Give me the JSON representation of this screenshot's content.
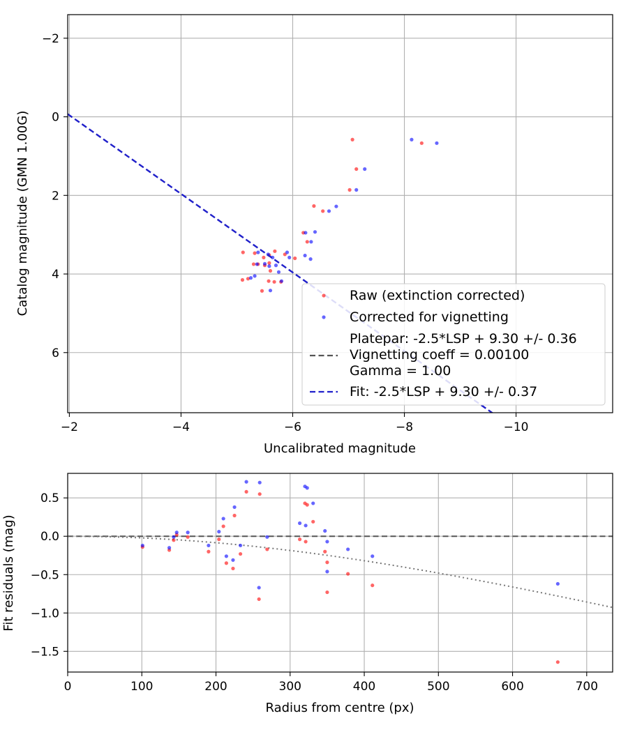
{
  "chart_data": [
    {
      "type": "scatter",
      "xlabel": "Uncalibrated magnitude",
      "ylabel": "Catalog magnitude (GMN 1.00G)",
      "xlim": [
        -1.97,
        -11.73
      ],
      "ylim": [
        7.53,
        -2.6
      ],
      "x_ticks": [
        -2,
        -4,
        -6,
        -8,
        -10
      ],
      "x_tick_labels": [
        "−2",
        "−4",
        "−6",
        "−8",
        "−10"
      ],
      "y_ticks": [
        -2,
        0,
        2,
        4,
        6
      ],
      "y_tick_labels": [
        "−2",
        "0",
        "2",
        "4",
        "6"
      ],
      "grid": true,
      "legend_position": "lower-right",
      "legend": [
        "Raw (extinction corrected)",
        "Corrected for vignetting",
        "Platepar: -2.5*LSP + 9.30 +/- 0.36",
        "Vignetting coeff = 0.00100",
        "Gamma = 1.00",
        "Fit: -2.5*LSP + 9.30 +/- 0.37"
      ],
      "colors": {
        "raw": "#ff0000",
        "corrected": "#0000ff",
        "fit": "#2020cc",
        "platepar": "#555555",
        "grid": "#b0b0b0"
      },
      "fit_line": {
        "slope": -1.0,
        "intercept": -2.04
      },
      "series": [
        {
          "name": "Raw (extinction corrected)",
          "points": [
            [
              -7.07,
              0.58
            ],
            [
              -8.31,
              0.67
            ],
            [
              -7.14,
              1.33
            ],
            [
              -7.02,
              1.86
            ],
            [
              -6.38,
              2.27
            ],
            [
              -6.54,
              2.4
            ],
            [
              -6.19,
              2.95
            ],
            [
              -6.26,
              3.18
            ],
            [
              -5.11,
              3.45
            ],
            [
              -5.32,
              3.47
            ],
            [
              -5.48,
              3.58
            ],
            [
              -5.68,
              3.42
            ],
            [
              -5.3,
              3.75
            ],
            [
              -5.38,
              3.75
            ],
            [
              -5.5,
              3.78
            ],
            [
              -5.58,
              3.72
            ],
            [
              -5.58,
              3.52
            ],
            [
              -6.04,
              3.6
            ],
            [
              -5.86,
              3.5
            ],
            [
              -5.6,
              3.92
            ],
            [
              -5.1,
              4.15
            ],
            [
              -5.2,
              4.12
            ],
            [
              -5.57,
              4.18
            ],
            [
              -5.67,
              4.2
            ],
            [
              -5.79,
              4.2
            ],
            [
              -5.45,
              4.43
            ]
          ]
        },
        {
          "name": "Corrected for vignetting",
          "points": [
            [
              -8.13,
              0.58
            ],
            [
              -8.58,
              0.67
            ],
            [
              -7.29,
              1.33
            ],
            [
              -7.14,
              1.86
            ],
            [
              -6.78,
              2.28
            ],
            [
              -6.65,
              2.4
            ],
            [
              -6.4,
              2.93
            ],
            [
              -6.23,
              2.95
            ],
            [
              -6.33,
              3.18
            ],
            [
              -5.38,
              3.45
            ],
            [
              -5.56,
              3.5
            ],
            [
              -5.64,
              3.58
            ],
            [
              -5.94,
              3.58
            ],
            [
              -5.9,
              3.45
            ],
            [
              -6.22,
              3.53
            ],
            [
              -6.32,
              3.62
            ],
            [
              -5.5,
              3.74
            ],
            [
              -5.58,
              3.8
            ],
            [
              -5.7,
              3.78
            ],
            [
              -5.75,
              3.95
            ],
            [
              -5.32,
              4.05
            ],
            [
              -5.25,
              4.1
            ],
            [
              -5.8,
              4.18
            ],
            [
              -5.6,
              4.42
            ],
            [
              -5.36,
              3.75
            ]
          ]
        }
      ]
    },
    {
      "type": "scatter",
      "xlabel": "Radius from centre (px)",
      "ylabel": "Fit residuals (mag)",
      "xlim": [
        0,
        735
      ],
      "ylim": [
        -1.77,
        0.82
      ],
      "x_ticks": [
        0,
        100,
        200,
        300,
        400,
        500,
        600,
        700
      ],
      "x_tick_labels": [
        "0",
        "100",
        "200",
        "300",
        "400",
        "500",
        "600",
        "700"
      ],
      "y_ticks": [
        0.5,
        0.0,
        -0.5,
        -1.0,
        -1.5
      ],
      "y_tick_labels": [
        "0.5",
        "0.0",
        "−0.5",
        "−1.0",
        "−1.5"
      ],
      "grid": true,
      "reference_line": 0.0,
      "vignetting_curve": {
        "coeff": 0.001,
        "description": "dotted grey model"
      },
      "series": [
        {
          "name": "Raw (extinction corrected)",
          "points": [
            [
              101,
              -0.14
            ],
            [
              137,
              -0.18
            ],
            [
              143,
              -0.05
            ],
            [
              147,
              0.02
            ],
            [
              162,
              -0.01
            ],
            [
              190,
              -0.2
            ],
            [
              204,
              -0.04
            ],
            [
              210,
              0.13
            ],
            [
              214,
              -0.35
            ],
            [
              223,
              -0.42
            ],
            [
              225,
              0.27
            ],
            [
              233,
              -0.23
            ],
            [
              241,
              0.58
            ],
            [
              258,
              -0.82
            ],
            [
              259,
              0.55
            ],
            [
              269,
              -0.17
            ],
            [
              313,
              -0.04
            ],
            [
              320,
              0.43
            ],
            [
              321,
              -0.07
            ],
            [
              323,
              0.41
            ],
            [
              331,
              0.19
            ],
            [
              347,
              -0.2
            ],
            [
              350,
              -0.34
            ],
            [
              350,
              -0.73
            ],
            [
              378,
              -0.49
            ],
            [
              411,
              -0.64
            ],
            [
              661,
              -1.64
            ]
          ]
        },
        {
          "name": "Corrected for vignetting",
          "points": [
            [
              101,
              -0.12
            ],
            [
              137,
              -0.15
            ],
            [
              143,
              -0.01
            ],
            [
              147,
              0.05
            ],
            [
              162,
              0.05
            ],
            [
              190,
              -0.12
            ],
            [
              204,
              0.06
            ],
            [
              210,
              0.23
            ],
            [
              214,
              -0.26
            ],
            [
              223,
              -0.31
            ],
            [
              225,
              0.38
            ],
            [
              233,
              -0.12
            ],
            [
              241,
              0.71
            ],
            [
              258,
              -0.67
            ],
            [
              259,
              0.7
            ],
            [
              269,
              -0.01
            ],
            [
              313,
              0.17
            ],
            [
              320,
              0.65
            ],
            [
              321,
              0.14
            ],
            [
              323,
              0.63
            ],
            [
              331,
              0.43
            ],
            [
              347,
              0.07
            ],
            [
              350,
              -0.07
            ],
            [
              350,
              -0.46
            ],
            [
              378,
              -0.17
            ],
            [
              411,
              -0.26
            ],
            [
              661,
              -0.62
            ]
          ]
        }
      ]
    }
  ]
}
